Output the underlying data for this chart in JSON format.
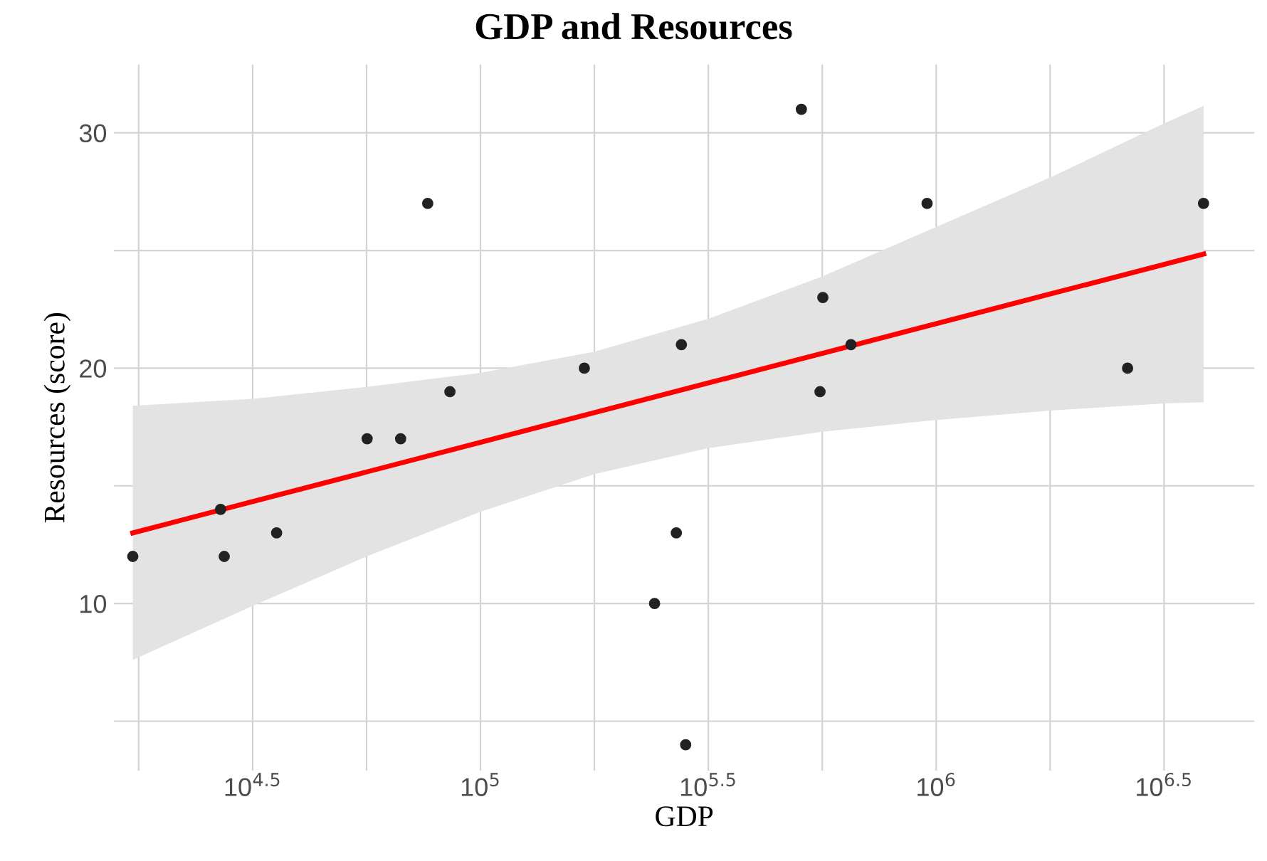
{
  "chart_data": {
    "type": "scatter",
    "title": "GDP and Resources",
    "xlabel": "GDP",
    "ylabel": "Resources (score)",
    "log": "x",
    "grid": true,
    "xlim": [
      15700,
      4990000
    ],
    "ylim": [
      2.9,
      32.9
    ],
    "xticks": [
      {
        "value": 17783,
        "label": null
      },
      {
        "value": 31623,
        "label": "10$^{4.5}$"
      },
      {
        "value": 56234,
        "label": null
      },
      {
        "value": 100000,
        "label": "10$^{5}$"
      },
      {
        "value": 177828,
        "label": null
      },
      {
        "value": 316228,
        "label": "10$^{5.5}$"
      },
      {
        "value": 562341,
        "label": null
      },
      {
        "value": 1000000,
        "label": "10$^{6}$"
      },
      {
        "value": 1778279,
        "label": null
      },
      {
        "value": 3162278,
        "label": "10$^{6.5}$"
      }
    ],
    "yticks": [
      {
        "value": 5,
        "label": null
      },
      10,
      {
        "value": 15,
        "label": null
      },
      20,
      {
        "value": 25,
        "label": null
      },
      30
    ],
    "series": [
      {
        "type": "line",
        "color": "#ff0000",
        "x": [
          17260,
          31623,
          56234,
          100000,
          177828,
          316228,
          562341,
          1000000,
          1778279,
          3162278,
          3864000
        ],
        "values": [
          13.0,
          14.33,
          15.59,
          16.85,
          18.11,
          19.37,
          20.63,
          21.89,
          23.15,
          24.41,
          24.85
        ],
        "lower": [
          7.6,
          9.9,
          12.0,
          13.9,
          15.5,
          16.6,
          17.3,
          17.8,
          18.2,
          18.5,
          18.55
        ],
        "upper": [
          18.4,
          18.7,
          19.2,
          19.8,
          20.7,
          22.1,
          23.9,
          26.0,
          28.1,
          30.4,
          31.15
        ]
      },
      {
        "marker": "circle",
        "color": "#222222",
        "x": [
          17260,
          26900,
          27400,
          35700,
          56400,
          66800,
          76600,
          85700,
          169000,
          241000,
          269000,
          276000,
          282000,
          506000,
          564000,
          556000,
          650000,
          955000,
          2630000,
          3860000
        ],
        "values": [
          12,
          14,
          12,
          13,
          17,
          17,
          27,
          19,
          20,
          10,
          13,
          21,
          4,
          31,
          23,
          19,
          21,
          27,
          20,
          27
        ]
      }
    ]
  }
}
